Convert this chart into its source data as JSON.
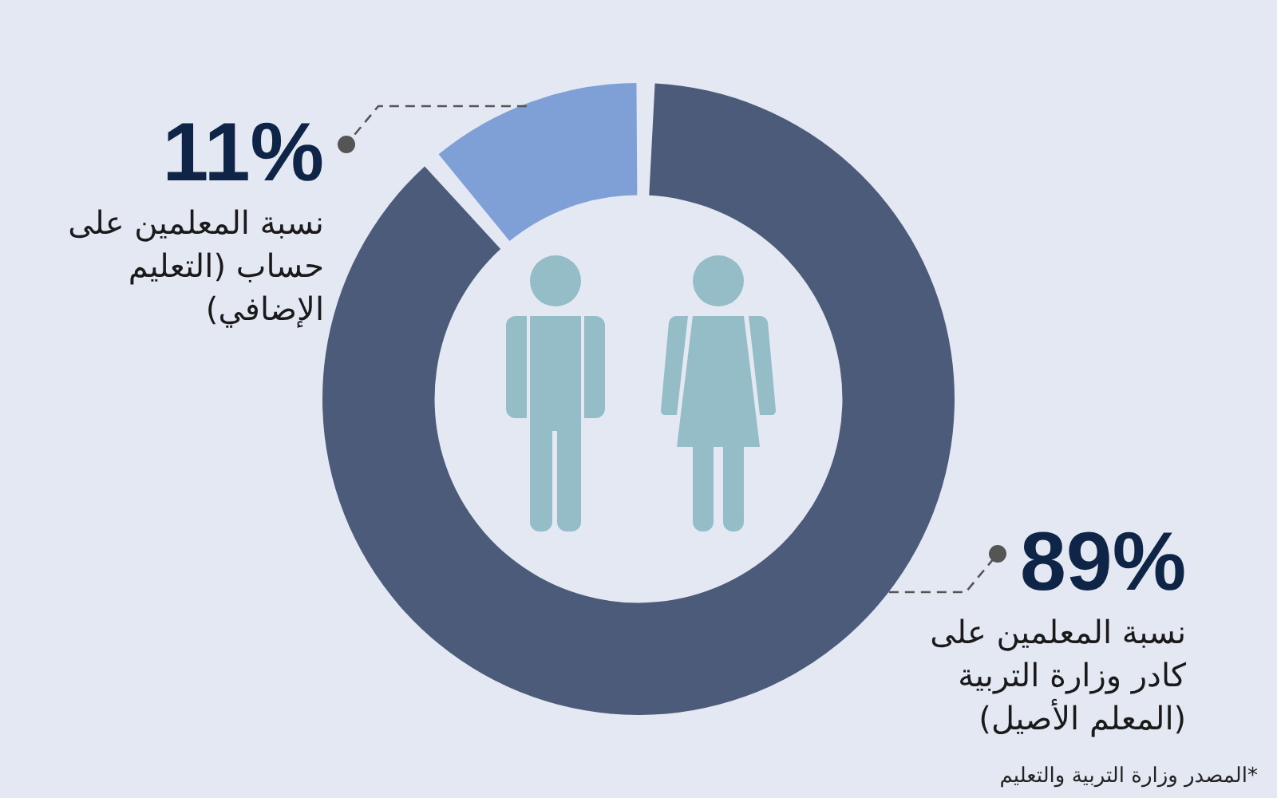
{
  "chart_data": {
    "type": "donut",
    "categories": [
      "نسبة المعلمين على كادر وزارة التربية (المعلم الأصيل)",
      "نسبة المعلمين على حساب (التعليم الإضافي)"
    ],
    "values": [
      89,
      11
    ],
    "value_labels": [
      "89%",
      "11%"
    ],
    "colors": [
      "#4b5b79",
      "#7ea0d6"
    ],
    "annotations": [
      "*المصدر وزارة التربية والتعليم"
    ]
  }
}
